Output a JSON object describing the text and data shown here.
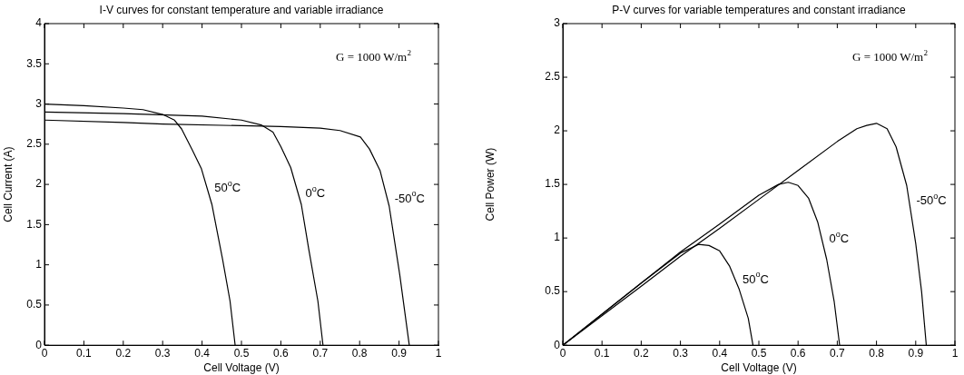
{
  "chart_data": [
    {
      "type": "line",
      "title": "I-V curves for constant temperature and variable irradiance",
      "xlabel": "Cell Voltage (V)",
      "ylabel": "Cell Current (A)",
      "xlim": [
        0,
        1
      ],
      "xticks": [
        0,
        0.1,
        0.2,
        0.3,
        0.4,
        0.5,
        0.6,
        0.7,
        0.8,
        0.9,
        1
      ],
      "ylim": [
        0,
        4
      ],
      "yticks": [
        0,
        0.5,
        1,
        1.5,
        2,
        2.5,
        3,
        3.5,
        4
      ],
      "marker": "none",
      "line_style": "solid",
      "series": [
        {
          "name": "50$^{o}$C",
          "color": "#000000",
          "x": [
            0,
            0.1,
            0.2,
            0.25,
            0.3,
            0.33,
            0.348,
            0.375,
            0.398,
            0.425,
            0.452,
            0.471,
            0.484
          ],
          "values": [
            3.0,
            2.98,
            2.95,
            2.93,
            2.87,
            2.8,
            2.69,
            2.43,
            2.2,
            1.75,
            1.07,
            0.55,
            0
          ]
        },
        {
          "name": "0$^{o}$C",
          "color": "#000000",
          "x": [
            0,
            0.2,
            0.4,
            0.5,
            0.55,
            0.58,
            0.6,
            0.625,
            0.652,
            0.671,
            0.694,
            0.707
          ],
          "values": [
            2.9,
            2.88,
            2.85,
            2.8,
            2.74,
            2.65,
            2.47,
            2.21,
            1.75,
            1.19,
            0.55,
            0
          ]
        },
        {
          "name": "-50$^{o}$C",
          "color": "#000000",
          "x": [
            0,
            0.2,
            0.3,
            0.5,
            0.6,
            0.7,
            0.75,
            0.802,
            0.825,
            0.852,
            0.875,
            0.902,
            0.926
          ],
          "values": [
            2.8,
            2.77,
            2.75,
            2.73,
            2.72,
            2.7,
            2.67,
            2.59,
            2.44,
            2.17,
            1.73,
            0.87,
            0
          ]
        }
      ],
      "annotations": [
        "G = 1000 W/m$^{2}$"
      ]
    },
    {
      "type": "line",
      "title": "P-V curves for variable temperatures and constant irradiance",
      "xlabel": "Cell Voltage (V)",
      "ylabel": "Cell Power (W)",
      "xlim": [
        0,
        1
      ],
      "xticks": [
        0,
        0.1,
        0.2,
        0.3,
        0.4,
        0.5,
        0.6,
        0.7,
        0.8,
        0.9,
        1
      ],
      "ylim": [
        0,
        3
      ],
      "yticks": [
        0,
        0.5,
        1,
        1.5,
        2,
        2.5,
        3
      ],
      "marker": "none",
      "line_style": "solid",
      "series": [
        {
          "name": "50$^{o}$C",
          "color": "#000000",
          "x": [
            0,
            0.1,
            0.2,
            0.3,
            0.346,
            0.373,
            0.4,
            0.425,
            0.45,
            0.473,
            0.485
          ],
          "values": [
            0,
            0.29,
            0.58,
            0.86,
            0.94,
            0.93,
            0.88,
            0.74,
            0.52,
            0.25,
            0
          ]
        },
        {
          "name": "0$^{o}$C",
          "color": "#000000",
          "x": [
            0,
            0.3,
            0.4,
            0.5,
            0.55,
            0.575,
            0.6,
            0.627,
            0.65,
            0.673,
            0.692,
            0.706
          ],
          "values": [
            0,
            0.87,
            1.13,
            1.4,
            1.5,
            1.52,
            1.49,
            1.37,
            1.15,
            0.8,
            0.41,
            0
          ]
        },
        {
          "name": "-50$^{o}$C",
          "color": "#000000",
          "x": [
            0,
            0.2,
            0.3,
            0.4,
            0.5,
            0.6,
            0.7,
            0.75,
            0.775,
            0.8,
            0.827,
            0.85,
            0.877,
            0.9,
            0.915,
            0.927
          ],
          "values": [
            0,
            0.55,
            0.83,
            1.09,
            1.36,
            1.63,
            1.9,
            2.02,
            2.05,
            2.07,
            2.02,
            1.85,
            1.49,
            0.95,
            0.5,
            0
          ]
        }
      ],
      "annotations": [
        "G = 1000 W/m$^{2}$"
      ]
    }
  ]
}
